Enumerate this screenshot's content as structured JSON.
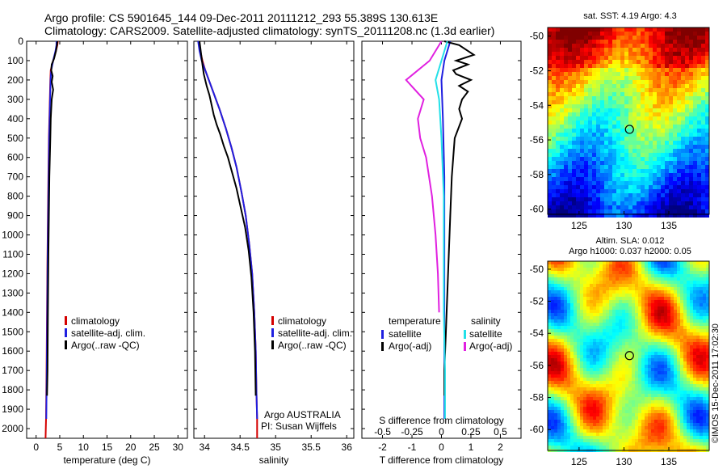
{
  "header": {
    "title_line1": "Argo profile: CS 5901645_144 09-Dec-2011 20111212_293 55.389S 130.613E",
    "title_line2": "Climatology: CARS2009. Satellite-adjusted climatology: synTS_20111208.nc (1.3d earlier)"
  },
  "colors": {
    "climatology": "#d40000",
    "satellite": "#1f1fe0",
    "argo": "#000000",
    "sal_satellite": "#22e0e8",
    "sal_argo": "#e020e0"
  },
  "chart_data": [
    {
      "type": "line",
      "panel": "temperature",
      "xlabel": "temperature (deg C)",
      "xlim": [
        -2,
        32
      ],
      "xticks": [
        "0",
        "5",
        "10",
        "15",
        "20",
        "25",
        "30"
      ],
      "ylim": [
        2050,
        0
      ],
      "yticks": [
        "0",
        "100",
        "200",
        "300",
        "400",
        "500",
        "600",
        "700",
        "800",
        "900",
        "1000",
        "1100",
        "1200",
        "1300",
        "1400",
        "1500",
        "1600",
        "1700",
        "1800",
        "1900",
        "2000"
      ],
      "legend": [
        "climatology",
        "satellite-adj. clim.",
        "Argo(..raw -QC)"
      ],
      "series": [
        {
          "name": "climatology",
          "color_key": "climatology",
          "x": [
            4.6,
            4.5,
            4.2,
            3.6,
            3.1,
            3.0,
            2.9,
            2.8,
            2.7,
            2.6,
            2.5,
            2.4,
            2.3,
            2.2,
            2.1,
            2.0
          ],
          "y": [
            0,
            20,
            50,
            100,
            150,
            200,
            300,
            400,
            500,
            700,
            900,
            1100,
            1400,
            1700,
            1950,
            2050
          ]
        },
        {
          "name": "satellite-adj. clim.",
          "color_key": "satellite",
          "x": [
            4.3,
            4.3,
            4.1,
            3.6,
            3.2,
            3.05,
            2.95,
            2.85,
            2.75,
            2.65,
            2.55,
            2.45,
            2.35,
            2.25,
            2.15
          ],
          "y": [
            0,
            20,
            50,
            100,
            150,
            200,
            300,
            400,
            500,
            700,
            900,
            1100,
            1400,
            1700,
            1950
          ]
        },
        {
          "name": "Argo(..raw -QC)",
          "color_key": "argo",
          "x": [
            4.5,
            4.4,
            4.2,
            3.8,
            3.3,
            3.2,
            3.5,
            3.3,
            3.6,
            3.3,
            3.1,
            3.0,
            2.9,
            2.8,
            2.7,
            2.6,
            2.5,
            2.4,
            2.3
          ],
          "y": [
            0,
            20,
            50,
            90,
            120,
            150,
            180,
            210,
            250,
            300,
            400,
            500,
            600,
            700,
            900,
            1100,
            1400,
            1700,
            1830
          ]
        }
      ]
    },
    {
      "type": "line",
      "panel": "salinity",
      "xlabel": "salinity",
      "xlim": [
        33.85,
        36.1
      ],
      "xticks": [
        "34",
        "34.5",
        "35",
        "35.5",
        "36"
      ],
      "ylim": [
        2050,
        0
      ],
      "legend": [
        "climatology",
        "satellite-adj. clim.",
        "Argo(..raw -QC)"
      ],
      "annotation": [
        "Argo AUSTRALIA",
        "PI: Susan Wijffels"
      ],
      "series": [
        {
          "name": "climatology",
          "color_key": "climatology",
          "x": [
            33.92,
            33.94,
            33.97,
            34.01,
            34.06,
            34.11,
            34.16,
            34.21,
            34.3,
            34.38,
            34.45,
            34.52,
            34.58,
            34.63,
            34.67,
            34.7,
            34.72,
            34.73,
            34.74,
            34.74
          ],
          "y": [
            0,
            50,
            100,
            150,
            200,
            250,
            300,
            350,
            450,
            550,
            650,
            780,
            900,
            1050,
            1200,
            1400,
            1600,
            1800,
            1950,
            2050
          ]
        },
        {
          "name": "satellite-adj. clim.",
          "color_key": "satellite",
          "x": [
            33.91,
            33.93,
            33.96,
            34.01,
            34.06,
            34.11,
            34.16,
            34.21,
            34.3,
            34.38,
            34.45,
            34.52,
            34.58,
            34.63,
            34.67,
            34.7,
            34.72,
            34.73,
            34.74
          ],
          "y": [
            0,
            50,
            100,
            150,
            200,
            250,
            300,
            350,
            450,
            550,
            650,
            780,
            900,
            1050,
            1200,
            1400,
            1600,
            1800,
            1950
          ]
        },
        {
          "name": "Argo(..raw -QC)",
          "color_key": "argo",
          "x": [
            33.93,
            33.95,
            33.97,
            33.99,
            34.03,
            34.07,
            34.1,
            34.13,
            34.17,
            34.22,
            34.27,
            34.33,
            34.39,
            34.45,
            34.51,
            34.57,
            34.62,
            34.66,
            34.69,
            34.71,
            34.72
          ],
          "y": [
            0,
            60,
            120,
            170,
            230,
            280,
            330,
            380,
            430,
            480,
            540,
            600,
            680,
            760,
            860,
            960,
            1080,
            1220,
            1400,
            1600,
            1830
          ]
        }
      ]
    },
    {
      "type": "line",
      "panel": "difference",
      "xlabel": "T difference from climatology",
      "xlabel_top": "S difference from climatology",
      "xlim": [
        -2.7,
        2.7
      ],
      "xticks": [
        "-2",
        "-1",
        "0",
        "1",
        "2"
      ],
      "xticks_top": [
        "-0.5",
        "-0.25",
        "0",
        "0.25",
        "0.5"
      ],
      "ylim": [
        2050,
        0
      ],
      "legend_temperature": {
        "title": "temperature",
        "entries": [
          "satellite",
          "Argo(-adj)"
        ]
      },
      "legend_salinity": {
        "title": "salinity",
        "entries": [
          "satellite",
          "Argo(-adj)"
        ]
      },
      "series": [
        {
          "name": "temperature satellite",
          "color_key": "satellite",
          "x": [
            0.3,
            0.2,
            0.1,
            0.05,
            0.0,
            0.05,
            0.1,
            0.1,
            0.1,
            0.1,
            0.1
          ],
          "y": [
            0,
            50,
            100,
            150,
            200,
            400,
            700,
            1000,
            1300,
            1600,
            1950
          ]
        },
        {
          "name": "temperature Argo(-adj)",
          "color_key": "argo",
          "x": [
            0.1,
            0.6,
            1.1,
            0.5,
            0.9,
            0.4,
            0.5,
            1.0,
            0.6,
            0.9,
            0.7,
            0.6,
            0.7,
            0.45,
            0.4,
            0.35,
            0.3,
            0.25,
            0.2,
            0.15,
            0.1,
            0.1
          ],
          "y": [
            0,
            20,
            70,
            100,
            120,
            150,
            170,
            200,
            230,
            260,
            300,
            350,
            400,
            500,
            600,
            700,
            900,
            1100,
            1300,
            1500,
            1700,
            1830
          ]
        },
        {
          "name": "salinity satellite",
          "color_key": "sal_satellite",
          "x": [
            0.05,
            0.0,
            -0.05,
            -0.02,
            0.0,
            0.02,
            0.02,
            0.02,
            0.03,
            0.03
          ],
          "y": [
            0,
            100,
            200,
            300,
            500,
            800,
            1100,
            1400,
            1700,
            1950
          ]
        },
        {
          "name": "salinity Argo(-adj)",
          "color_key": "sal_argo",
          "x": [
            0.0,
            -0.1,
            -0.3,
            -0.15,
            -0.2,
            -0.18,
            -0.13,
            -0.08,
            -0.05,
            -0.03,
            -0.02
          ],
          "y": [
            0,
            100,
            200,
            300,
            400,
            500,
            600,
            800,
            1000,
            1200,
            1400
          ]
        }
      ]
    },
    {
      "type": "heatmap",
      "panel": "sst_map",
      "title": "sat. SST: 4.19 Argo: 4.3",
      "xticks": [
        "125",
        "130",
        "135"
      ],
      "yticks": [
        "-50",
        "-52",
        "-54",
        "-56",
        "-58",
        "-60"
      ],
      "xlim": [
        121.5,
        139.5
      ],
      "ylim": [
        -60.3,
        -49.5
      ],
      "marker": {
        "lon": 130.613,
        "lat": -55.389
      }
    },
    {
      "type": "heatmap",
      "panel": "sla_map",
      "title_line1": "Altim. SLA: 0.012",
      "title_line2": "Argo h1000: 0.037 h2000: 0.05",
      "xticks": [
        "125",
        "130",
        "135"
      ],
      "yticks": [
        "-50",
        "-52",
        "-54",
        "-56",
        "-58",
        "-60"
      ],
      "xlim": [
        121.5,
        139.5
      ],
      "ylim": [
        -61.3,
        -49.5
      ],
      "marker": {
        "lon": 130.613,
        "lat": -55.389
      }
    }
  ],
  "footer": {
    "credit": "©IMOS 15-Dec-2011 17:02:30"
  }
}
